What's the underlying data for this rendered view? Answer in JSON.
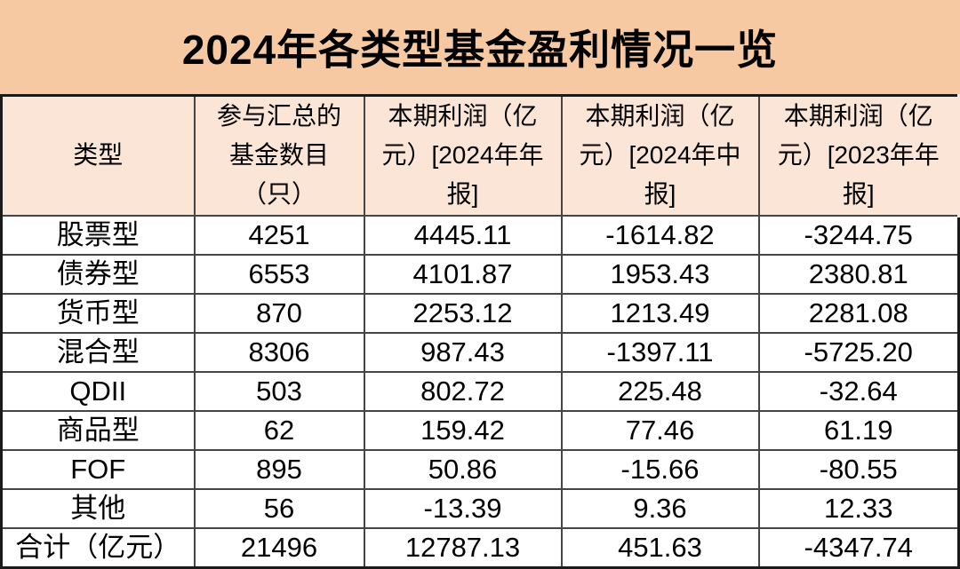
{
  "title": "2024年各类型基金盈利情况一览",
  "colors": {
    "title_band_bg": "#F7C9A2",
    "header_bg": "#FBE5D6",
    "row_bg": "#FFFFFF",
    "grid_border": "#454545",
    "outer_border": "#1A1A1A",
    "text": "#000000"
  },
  "table": {
    "header": [
      {
        "lines": [
          "类型"
        ]
      },
      {
        "lines": [
          "参与汇总的",
          "基金数目",
          "（只）"
        ]
      },
      {
        "lines": [
          "本期利润（亿",
          "元）[2024年年",
          "报]"
        ]
      },
      {
        "lines": [
          "本期利润（亿",
          "元）[2024年中",
          "报]"
        ]
      },
      {
        "lines": [
          "本期利润（亿",
          "元）[2023年年",
          "报]"
        ]
      }
    ],
    "rows": [
      [
        "股票型",
        "4251",
        "4445.11",
        "-1614.82",
        "-3244.75"
      ],
      [
        "债券型",
        "6553",
        "4101.87",
        "1953.43",
        "2380.81"
      ],
      [
        "货币型",
        "870",
        "2253.12",
        "1213.49",
        "2281.08"
      ],
      [
        "混合型",
        "8306",
        "987.43",
        "-1397.11",
        "-5725.20"
      ],
      [
        "QDII",
        "503",
        "802.72",
        "225.48",
        "-32.64"
      ],
      [
        "商品型",
        "62",
        "159.42",
        "77.46",
        "61.19"
      ],
      [
        "FOF",
        "895",
        "50.86",
        "-15.66",
        "-80.55"
      ],
      [
        "其他",
        "56",
        "-13.39",
        "9.36",
        "12.33"
      ],
      [
        "合计（亿元）",
        "21496",
        "12787.13",
        "451.63",
        "-4347.74"
      ]
    ]
  },
  "chart_data": {
    "type": "table",
    "title": "2024年各类型基金盈利情况一览",
    "columns": [
      "类型",
      "参与汇总的基金数目（只）",
      "本期利润（亿元）[2024年年报]",
      "本期利润（亿元）[2024年中报]",
      "本期利润（亿元）[2023年年报]"
    ],
    "rows": [
      [
        "股票型",
        4251,
        4445.11,
        -1614.82,
        -3244.75
      ],
      [
        "债券型",
        6553,
        4101.87,
        1953.43,
        2380.81
      ],
      [
        "货币型",
        870,
        2253.12,
        1213.49,
        2281.08
      ],
      [
        "混合型",
        8306,
        987.43,
        -1397.11,
        -5725.2
      ],
      [
        "QDII",
        503,
        802.72,
        225.48,
        -32.64
      ],
      [
        "商品型",
        62,
        159.42,
        77.46,
        61.19
      ],
      [
        "FOF",
        895,
        50.86,
        -15.66,
        -80.55
      ],
      [
        "其他",
        56,
        -13.39,
        9.36,
        12.33
      ],
      [
        "合计（亿元）",
        21496,
        12787.13,
        451.63,
        -4347.74
      ]
    ]
  }
}
